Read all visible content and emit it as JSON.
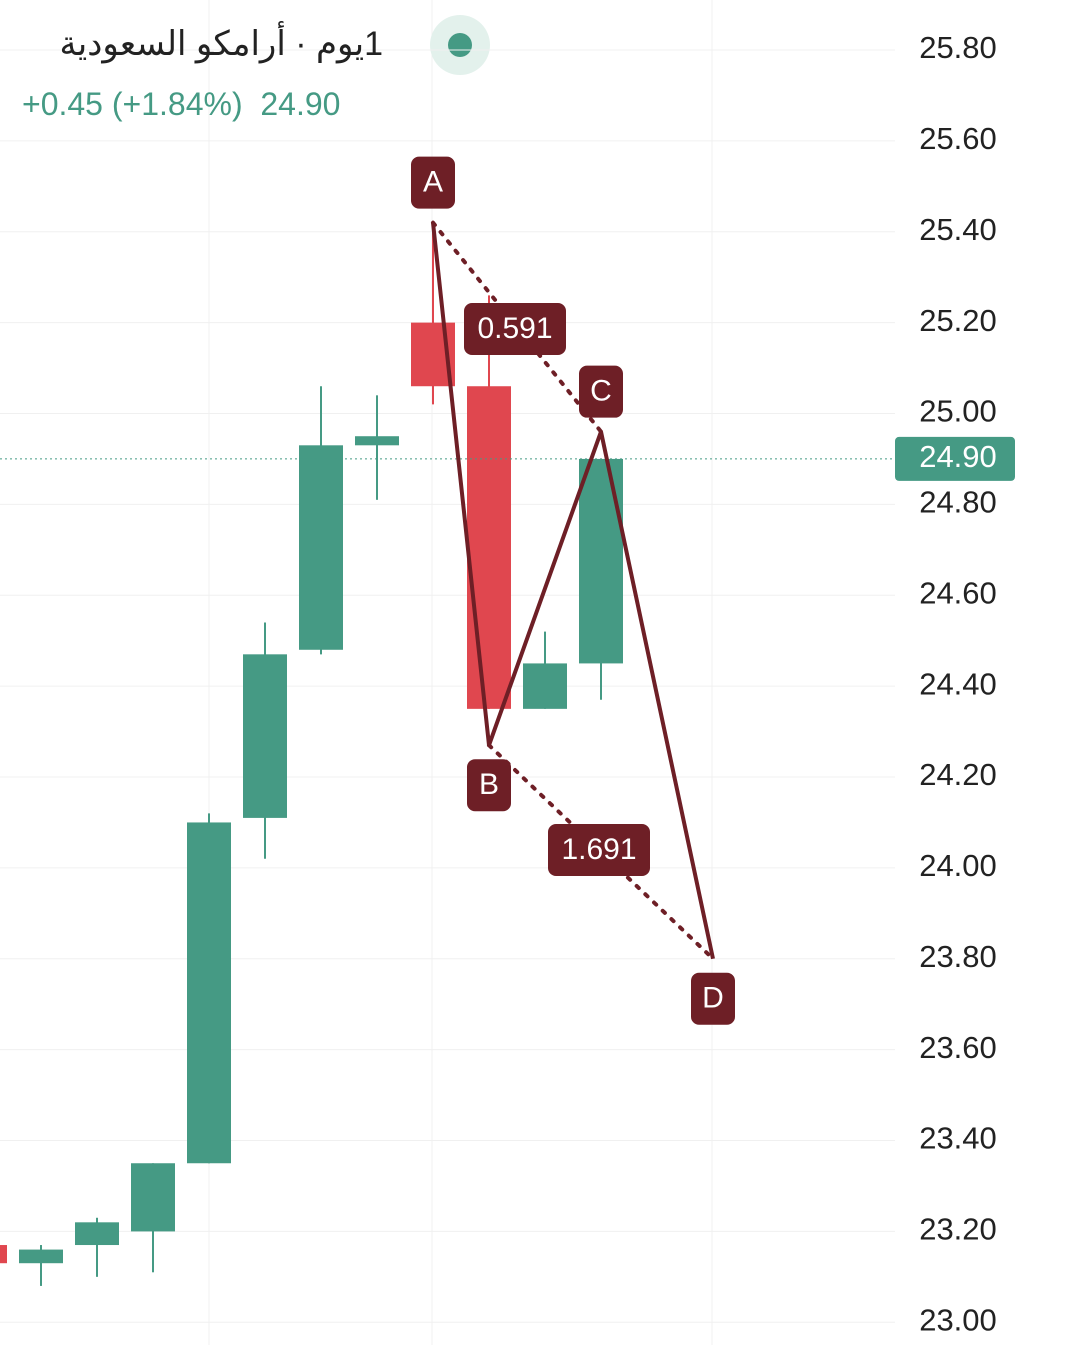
{
  "chart_data": {
    "type": "candlestick",
    "title": "1يوم · أرامكو السعودية",
    "change_label": "+0.45 (+1.84%)",
    "last_price": {
      "value": 24.9,
      "label": "24.90"
    },
    "up_color": "#459a84",
    "down_color": "#e0474f",
    "pattern_color": "#6e1f26",
    "candles": [
      {
        "open": 23.17,
        "high": 23.17,
        "low": 23.13,
        "close": 23.13
      },
      {
        "open": 23.13,
        "high": 23.17,
        "low": 23.08,
        "close": 23.16
      },
      {
        "open": 23.17,
        "high": 23.23,
        "low": 23.1,
        "close": 23.22
      },
      {
        "open": 23.2,
        "high": 23.35,
        "low": 23.11,
        "close": 23.35
      },
      {
        "open": 23.35,
        "high": 24.12,
        "low": 23.35,
        "close": 24.1
      },
      {
        "open": 24.11,
        "high": 24.54,
        "low": 24.02,
        "close": 24.47
      },
      {
        "open": 24.48,
        "high": 25.06,
        "low": 24.47,
        "close": 24.93
      },
      {
        "open": 24.93,
        "high": 25.04,
        "low": 24.81,
        "close": 24.95
      },
      {
        "open": 25.2,
        "high": 25.42,
        "low": 25.02,
        "close": 25.06
      },
      {
        "open": 25.06,
        "high": 25.26,
        "low": 24.35,
        "close": 24.35
      },
      {
        "open": 24.35,
        "high": 24.52,
        "low": 24.35,
        "close": 24.45
      },
      {
        "open": 24.45,
        "high": 24.9,
        "low": 24.37,
        "close": 24.9
      }
    ],
    "pattern": {
      "points": [
        {
          "label": "A",
          "price": 25.42
        },
        {
          "label": "B",
          "price": 24.27
        },
        {
          "label": "C",
          "price": 24.96
        },
        {
          "label": "D",
          "price": 23.8
        }
      ],
      "ratios": [
        0.591,
        1.691
      ]
    },
    "ylim": [
      22.95,
      25.91
    ],
    "yticks": [
      {
        "value": 23.0,
        "label": "23.00"
      },
      {
        "value": 23.2,
        "label": "23.20"
      },
      {
        "value": 23.4,
        "label": "23.40"
      },
      {
        "value": 23.6,
        "label": "23.60"
      },
      {
        "value": 23.8,
        "label": "23.80"
      },
      {
        "value": 24.0,
        "label": "24.00"
      },
      {
        "value": 24.2,
        "label": "24.20"
      },
      {
        "value": 24.4,
        "label": "24.40"
      },
      {
        "value": 24.6,
        "label": "24.60"
      },
      {
        "value": 24.8,
        "label": "24.80"
      },
      {
        "value": 25.0,
        "label": "25.00"
      },
      {
        "value": 25.2,
        "label": "25.20"
      },
      {
        "value": 25.4,
        "label": "25.40"
      },
      {
        "value": 25.6,
        "label": "25.60"
      },
      {
        "value": 25.8,
        "label": "25.80"
      }
    ],
    "grid": true
  }
}
